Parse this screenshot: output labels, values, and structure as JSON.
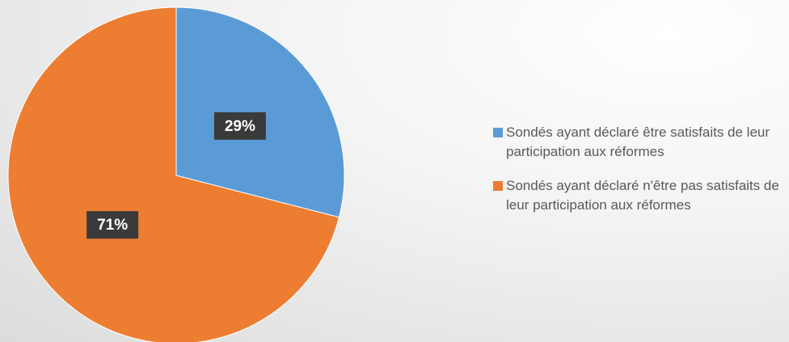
{
  "chart_data": {
    "type": "pie",
    "series": [
      {
        "name": "Sondés ayant déclaré être satisfaits de leur participation aux réformes",
        "color": "#5b9bd5"
      },
      {
        "name": "Sondés ayant déclaré n'être pas satisfaits de leur participation aux réformes",
        "color": "#ed7d31"
      }
    ],
    "values": [
      29,
      71
    ],
    "value_labels": [
      "29%",
      "71%"
    ],
    "legend": "right"
  }
}
